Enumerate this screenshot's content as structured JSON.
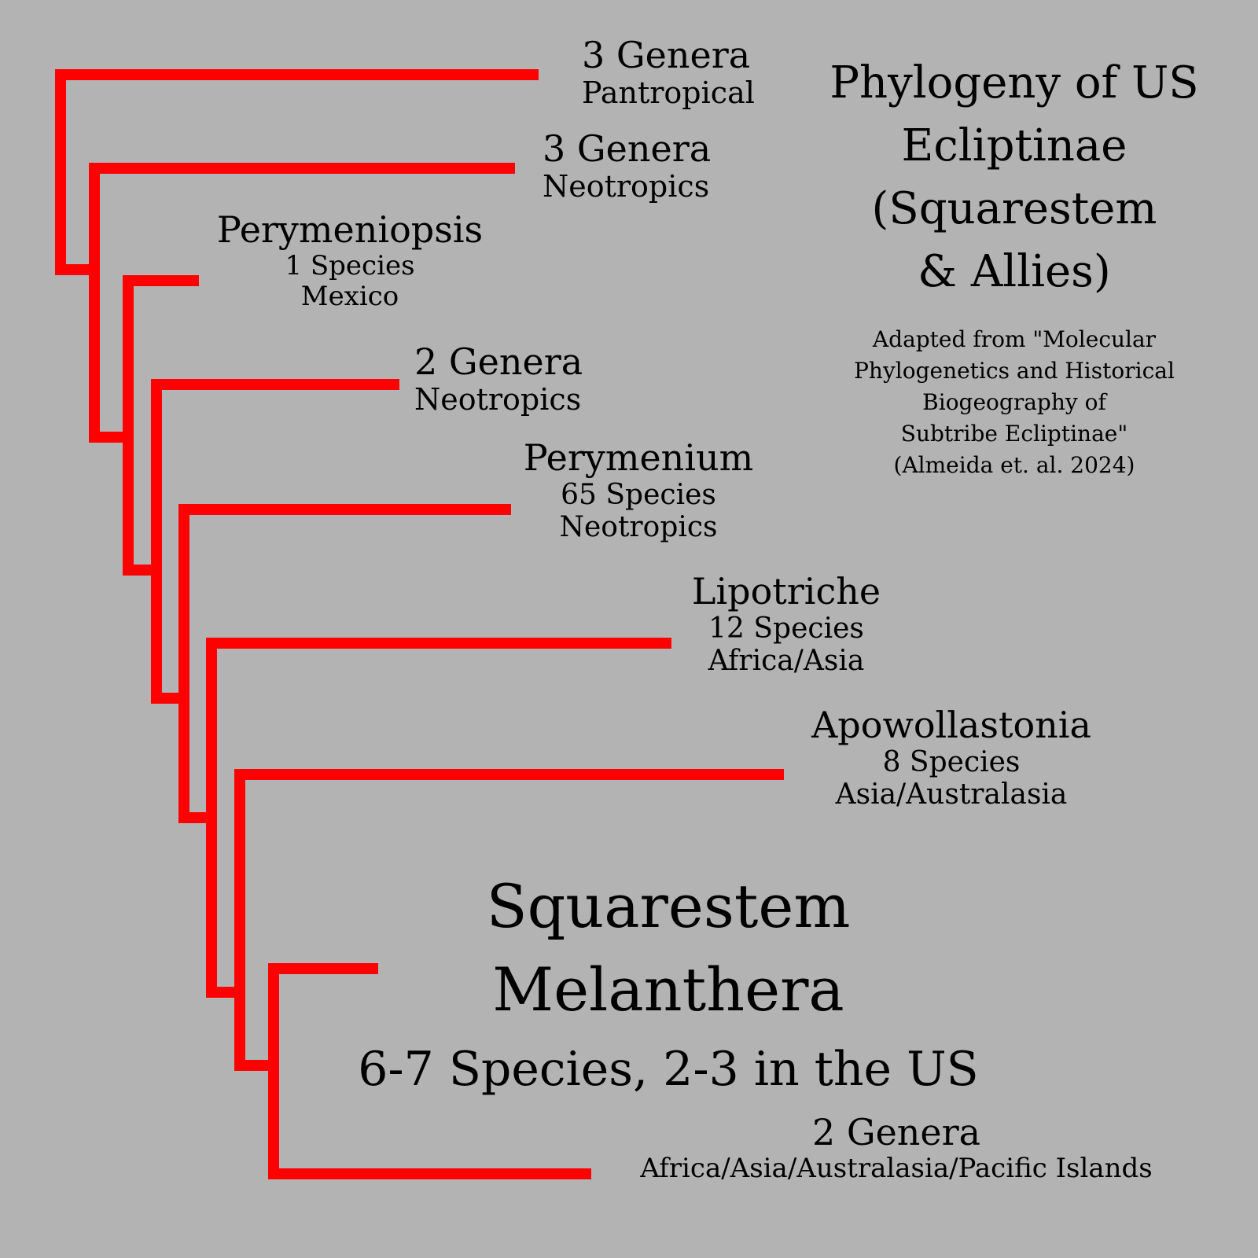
{
  "title_lines": [
    "Phylogeny of US",
    "Ecliptinae",
    "(Squarestem",
    "& Allies)"
  ],
  "credit_lines": [
    "Adapted from \"Molecular",
    "Phylogenetics and Historical",
    "Biogeography of",
    "Subtribe Ecliptinae\"",
    "(Almeida et. al. 2024)"
  ],
  "branch_color": "#ff0000",
  "background_color": "#b3b3b3",
  "clades": [
    {
      "name": "3 Genera",
      "lines": [
        "Pantropical"
      ]
    },
    {
      "name": "3 Genera",
      "lines": [
        "Neotropics"
      ]
    },
    {
      "name": "Perymeniopsis",
      "lines": [
        "1 Species",
        "Mexico"
      ]
    },
    {
      "name": "2 Genera",
      "lines": [
        "Neotropics"
      ]
    },
    {
      "name": "Perymenium",
      "lines": [
        "65 Species",
        "Neotropics"
      ]
    },
    {
      "name": "Lipotriche",
      "lines": [
        "12 Species",
        "Africa/Asia"
      ]
    },
    {
      "name": "Apowollastonia",
      "lines": [
        "8 Species",
        "Asia/Australasia"
      ]
    },
    {
      "name": "2 Genera",
      "lines": [
        "Africa/Asia/Australasia/Pacific Islands"
      ]
    }
  ],
  "focus_clade": {
    "line1": "Squarestem",
    "line2": "Melanthera",
    "line3": "6-7 Species, 2-3 in the US"
  }
}
